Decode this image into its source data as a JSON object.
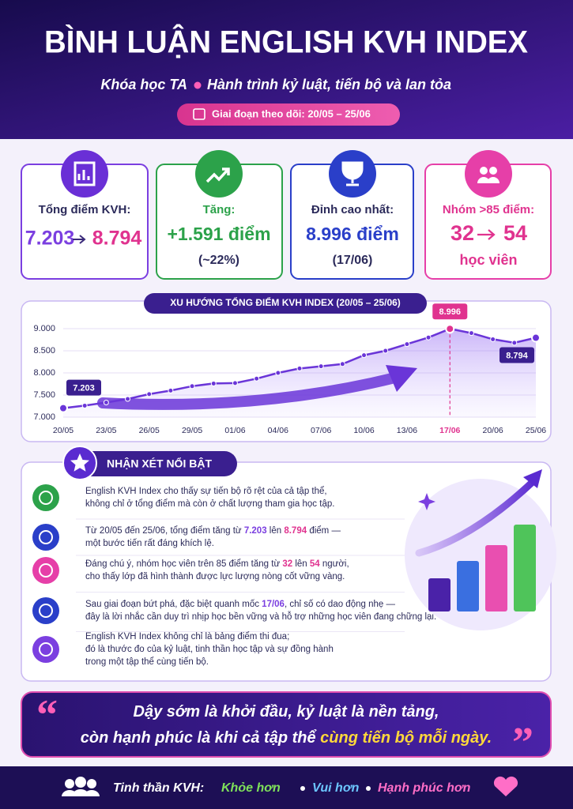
{
  "header": {
    "title": "BÌNH LUẬN ENGLISH KVH INDEX",
    "subtitle": [
      "Khóa học TA",
      "Hành trình kỷ luật, tiến bộ và lan tỏa"
    ],
    "period": "Giai đoạn theo dõi: 20/05 – 25/06"
  },
  "stats": [
    {
      "label": "Tổng điểm KVH:",
      "from": "7.203",
      "to": "8.794"
    },
    {
      "label": "Tăng:",
      "value": "+1.591 điểm",
      "note": "(~22%)"
    },
    {
      "label": "Đỉnh cao nhất:",
      "value": "8.996 điểm",
      "note": "(17/06)"
    },
    {
      "label": "Nhóm >85 điểm:",
      "from": "32",
      "to": "54",
      "note": "học viên"
    }
  ],
  "chart_data": {
    "type": "line",
    "title": "XU HƯỚNG TỔNG ĐIỂM KVH INDEX (20/05 – 25/06)",
    "categories": [
      "20/05",
      null,
      "23/05",
      null,
      "26/05",
      null,
      "29/05",
      null,
      "01/06",
      null,
      "04/06",
      null,
      "07/06",
      null,
      "10/06",
      null,
      "13/06",
      null,
      "17/06",
      null,
      "20/06",
      null,
      "25/06"
    ],
    "values": [
      7203,
      7260,
      7330,
      7410,
      7520,
      7600,
      7700,
      7760,
      7770,
      7870,
      8000,
      8100,
      8150,
      8200,
      8400,
      8500,
      8650,
      8800,
      8996,
      8900,
      8760,
      8680,
      8794
    ],
    "value_labels": [
      "7.203",
      null,
      null,
      null,
      null,
      null,
      null,
      null,
      null,
      null,
      null,
      null,
      null,
      null,
      null,
      null,
      null,
      null,
      "8.996",
      null,
      null,
      null,
      "8.794"
    ],
    "color": "#6a35d8",
    "ylim": [
      7000,
      9000
    ],
    "yticks": [
      {
        "value": 7000,
        "label": "7.000"
      },
      {
        "value": 7500,
        "label": "7.500"
      },
      {
        "value": 8000,
        "label": "8.000"
      },
      {
        "value": 8500,
        "label": "8.500"
      },
      {
        "value": 9000,
        "label": "9.000"
      }
    ],
    "grid": true
  },
  "highlights": {
    "title": "NHẬN XÉT NỔI BẬT",
    "items": [
      {
        "lines": [
          [
            {
              "text": "English KVH Index cho thấy sự tiến bộ rõ rệt của cả tập thể,"
            }
          ],
          [
            {
              "text": "không chỉ ở tổng điểm mà còn ở chất lượng tham gia học tập."
            }
          ]
        ]
      },
      {
        "lines": [
          [
            {
              "text": "Từ 20/05 đến 25/06, tổng điểm tăng từ "
            },
            {
              "text": "7.203",
              "color": "#7b3fe0"
            },
            {
              "text": " lên "
            },
            {
              "text": "8.794",
              "color": "#e0338f"
            },
            {
              "text": " điểm —"
            }
          ],
          [
            {
              "text": "một bước tiến rất đáng khích lệ."
            }
          ]
        ]
      },
      {
        "lines": [
          [
            {
              "text": "Đáng chú ý, nhóm học viên trên 85 điểm tăng từ "
            },
            {
              "text": "32",
              "color": "#e0338f"
            },
            {
              "text": " lên "
            },
            {
              "text": "54",
              "color": "#e0338f"
            },
            {
              "text": " người,"
            }
          ],
          [
            {
              "text": "cho thấy lớp đã hình thành được lực lượng nòng cốt vững vàng."
            }
          ]
        ]
      },
      {
        "lines": [
          [
            {
              "text": "Sau giai đoạn bứt phá, đặc biệt quanh mốc "
            },
            {
              "text": "17/06",
              "color": "#7b3fe0"
            },
            {
              "text": ", chỉ số có dao động nhẹ —"
            }
          ],
          [
            {
              "text": "đây là lời nhắc cần duy trì nhịp học bền vững và hỗ trợ những học viên đang chững lại."
            }
          ]
        ]
      },
      {
        "lines": [
          [
            {
              "text": "English KVH Index không chỉ là bảng điểm thi đua;"
            }
          ],
          [
            {
              "text": "đó là thước đo của kỷ luật, tinh thần học tập và sự đồng hành"
            }
          ],
          [
            {
              "text": "trong một tập thể cùng tiến bộ."
            }
          ]
        ]
      }
    ]
  },
  "quote": {
    "open": "“",
    "close": "”",
    "lines": [
      [
        {
          "text": "Dậy sớm là khởi đầu, kỷ luật là nền tảng,"
        }
      ],
      [
        {
          "text": "còn hạnh phúc là khi cả tập thể "
        },
        {
          "text": "cùng tiến bộ mỗi ngày.",
          "color": "#ffd83a"
        }
      ]
    ]
  },
  "footer": {
    "label": "Tinh thần KVH:",
    "items": [
      {
        "text": "Khỏe hơn",
        "color": "#7ee05a"
      },
      {
        "text": "Vui hơn",
        "color": "#6cc6ff"
      },
      {
        "text": "Hạnh phúc hơn",
        "color": "#ff6ec7"
      }
    ]
  }
}
